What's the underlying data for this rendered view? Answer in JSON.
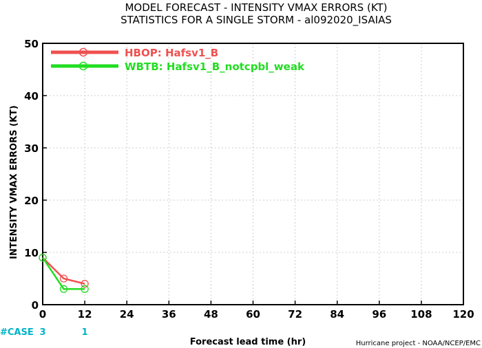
{
  "chart_data": {
    "type": "line",
    "title_lines": [
      "MODEL FORECAST - INTENSITY VMAX ERRORS (KT)",
      "STATISTICS FOR A SINGLE STORM - al092020_ISAIAS"
    ],
    "xlabel": "Forecast lead time (hr)",
    "ylabel": "INTENSITY VMAX ERRORS (KT)",
    "xlim": [
      0,
      120
    ],
    "ylim": [
      0,
      50
    ],
    "xticks": [
      0,
      12,
      24,
      36,
      48,
      60,
      72,
      84,
      96,
      108,
      120
    ],
    "yticks": [
      0,
      10,
      20,
      30,
      40,
      50
    ],
    "grid": true,
    "legend_position": "top-left",
    "series": [
      {
        "name": "HBOP: Hafsv1_B",
        "color": "#f05050",
        "x": [
          0,
          6,
          12
        ],
        "y": [
          9,
          5,
          4
        ]
      },
      {
        "name": "WBTB: Hafsv1_B_notcpbl_weak",
        "color": "#22dd22",
        "x": [
          0,
          6,
          12
        ],
        "y": [
          9,
          3,
          3
        ]
      }
    ],
    "case_label": "#CASE",
    "case_counts": [
      {
        "x": 0,
        "label": "3"
      },
      {
        "x": 12,
        "label": "1"
      }
    ],
    "credit": "Hurricane project - NOAA/NCEP/EMC"
  }
}
